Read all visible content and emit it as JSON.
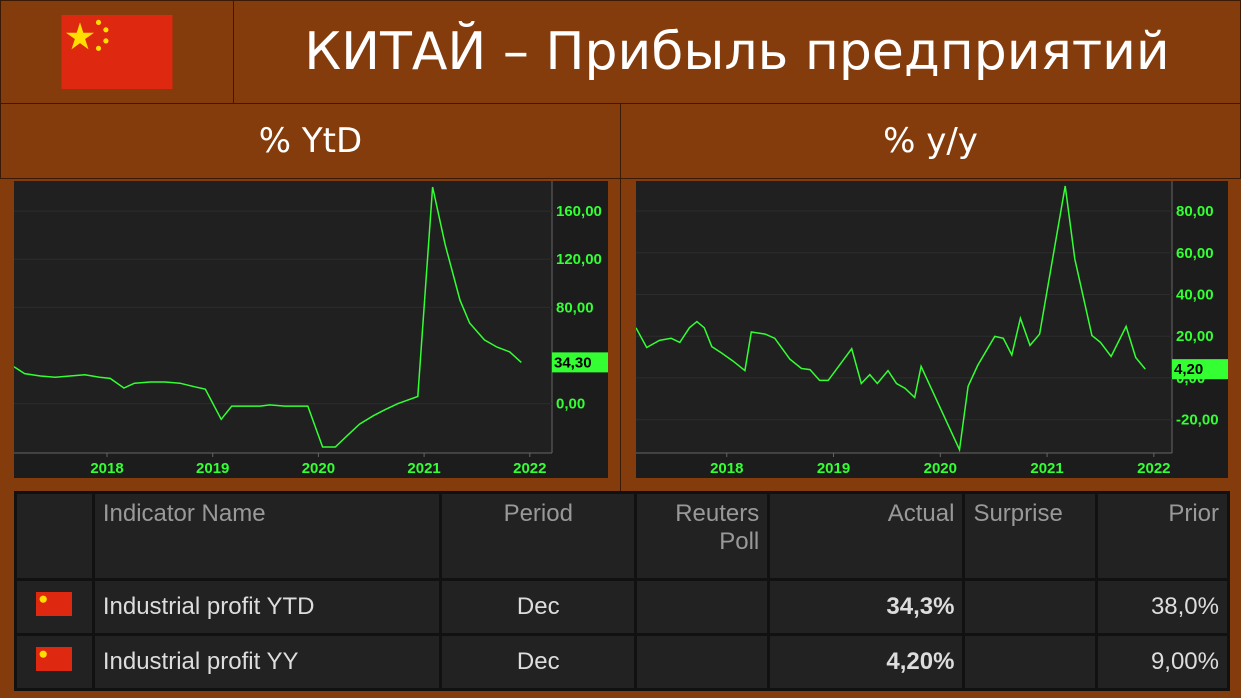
{
  "header": {
    "title": "КИТАЙ – Прибыль предприятий"
  },
  "chart_data": [
    {
      "type": "line",
      "title": "% YtD",
      "color": "#33ff33",
      "x": [
        2017.12,
        2017.22,
        2017.37,
        2017.51,
        2017.65,
        2017.79,
        2017.93,
        2018.03,
        2018.16,
        2018.26,
        2018.41,
        2018.55,
        2018.69,
        2018.83,
        2018.93,
        2019.08,
        2019.18,
        2019.3,
        2019.45,
        2019.54,
        2019.68,
        2019.8,
        2019.9,
        2020.04,
        2020.16,
        2020.28,
        2020.39,
        2020.52,
        2020.63,
        2020.75,
        2020.94,
        2021.08,
        2021.2,
        2021.34,
        2021.43,
        2021.57,
        2021.69,
        2021.81,
        2021.92
      ],
      "values": [
        30.7,
        25,
        23,
        22,
        23,
        24,
        22,
        21,
        13,
        17,
        18,
        18,
        17,
        14,
        12,
        -13,
        -2,
        -2,
        -2,
        -1,
        -2,
        -2,
        -2,
        -36,
        -36,
        -26,
        -17,
        -10,
        -5,
        0,
        6,
        180,
        132,
        86,
        67,
        53,
        47,
        43,
        34.3
      ],
      "last_value_label": "34,30",
      "xlim": [
        2017.12,
        2022.21
      ],
      "xticks": [
        2018,
        2019,
        2020,
        2021,
        2022
      ],
      "ylim": [
        -41,
        185
      ],
      "yticks": [
        {
          "value": 0,
          "label": "0,00"
        },
        {
          "value": 80,
          "label": "80,00"
        },
        {
          "value": 120,
          "label": "120,00"
        },
        {
          "value": 160,
          "label": "160,00"
        }
      ]
    },
    {
      "type": "line",
      "title": "% y/y",
      "color": "#33ff33",
      "x": [
        2017.15,
        2017.25,
        2017.37,
        2017.48,
        2017.56,
        2017.65,
        2017.72,
        2017.79,
        2017.86,
        2017.95,
        2018.06,
        2018.17,
        2018.23,
        2018.36,
        2018.45,
        2018.59,
        2018.7,
        2018.78,
        2018.87,
        2018.95,
        2019.17,
        2019.26,
        2019.34,
        2019.41,
        2019.51,
        2019.59,
        2019.67,
        2019.76,
        2019.82,
        2020.18,
        2020.26,
        2020.35,
        2020.51,
        2020.59,
        2020.67,
        2020.75,
        2020.84,
        2020.93,
        2021.17,
        2021.26,
        2021.42,
        2021.5,
        2021.6,
        2021.74,
        2021.83,
        2021.92
      ],
      "values": [
        24,
        14.6,
        18,
        19,
        17,
        24,
        27,
        24,
        15,
        12,
        8,
        3.5,
        22,
        21,
        19,
        9,
        4.5,
        4,
        -1.2,
        -1.2,
        14,
        -2.7,
        1.6,
        -2.7,
        3.5,
        -2.7,
        -5,
        -9.4,
        5.5,
        -34.4,
        -4,
        6,
        19.9,
        19,
        11,
        28.6,
        15.6,
        21,
        92,
        57,
        20.4,
        17,
        10.3,
        24.7,
        9.8,
        4.2
      ],
      "last_value_label": "4,20",
      "xlim": [
        2017.15,
        2022.17
      ],
      "xticks": [
        2018,
        2019,
        2020,
        2021,
        2022
      ],
      "ylim": [
        -36,
        94.4
      ],
      "yticks": [
        {
          "value": -20,
          "label": "-20,00"
        },
        {
          "value": 0,
          "label": "0,00"
        },
        {
          "value": 20,
          "label": "20,00"
        },
        {
          "value": 40,
          "label": "40,00"
        },
        {
          "value": 60,
          "label": "60,00"
        },
        {
          "value": 80,
          "label": "80,00"
        }
      ]
    }
  ],
  "table": {
    "columns": [
      null,
      "Indicator Name",
      "Period",
      "Reuters Poll",
      "Actual",
      "Surprise",
      "Prior"
    ],
    "rows": [
      [
        null,
        "Industrial profit YTD",
        "Dec",
        null,
        "34,3%",
        null,
        "38,0%"
      ],
      [
        null,
        "Industrial profit YY",
        "Dec",
        null,
        "4,20%",
        null,
        "9,00%"
      ]
    ]
  }
}
